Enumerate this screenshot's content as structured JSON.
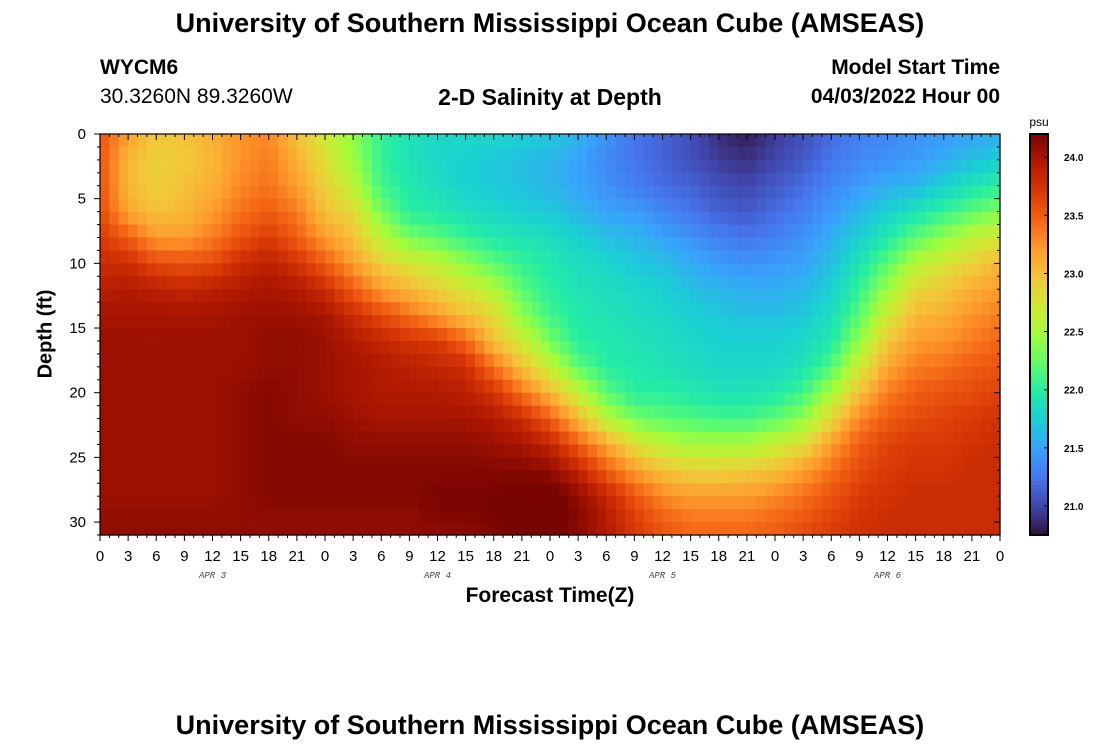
{
  "header": {
    "title": "University of Southern Mississippi Ocean Cube (AMSEAS)",
    "station": "WYCM6",
    "coords": "30.3260N  89.3260W",
    "subtitle": "2-D Salinity at Depth",
    "model_start_label": "Model Start Time",
    "model_start_value": "04/03/2022 Hour 00"
  },
  "footer": {
    "title": "University of Southern Mississippi Ocean Cube (AMSEAS)"
  },
  "chart_data": {
    "type": "heatmap",
    "title": "2-D Salinity at Depth",
    "xlabel": "Forecast Time(Z)",
    "ylabel": "Depth (ft)",
    "x_range_hours": [
      0,
      96
    ],
    "x_major_step_hours": 3,
    "x_tick_labels": [
      "0",
      "3",
      "6",
      "9",
      "12",
      "15",
      "18",
      "21",
      "0",
      "3",
      "6",
      "9",
      "12",
      "15",
      "18",
      "21",
      "0",
      "3",
      "6",
      "9",
      "12",
      "15",
      "18",
      "21",
      "0",
      "3",
      "6",
      "9",
      "12",
      "15",
      "18",
      "21",
      "0"
    ],
    "date_labels": [
      {
        "label": "APR 3",
        "hour": 12
      },
      {
        "label": "APR 4",
        "hour": 36
      },
      {
        "label": "APR 5",
        "hour": 60
      },
      {
        "label": "APR 6",
        "hour": 84
      }
    ],
    "ylim": [
      0,
      31
    ],
    "y_ticks": [
      0,
      5,
      10,
      15,
      20,
      25,
      30
    ],
    "colorbar": {
      "unit": "psu",
      "range": [
        20.75,
        24.2
      ],
      "ticks": [
        21.0,
        21.5,
        22.0,
        22.5,
        23.0,
        23.5,
        24.0
      ],
      "tick_labels": [
        "21.0",
        "21.5",
        "22.0",
        "22.5",
        "23.0",
        "23.5",
        "24.0"
      ],
      "colormap": [
        "#30123b",
        "#4145ab",
        "#4675ed",
        "#39a2fc",
        "#1bcfd4",
        "#24eca6",
        "#61fc6c",
        "#a4fc3b",
        "#d1e834",
        "#f3c63a",
        "#fe9b2d",
        "#f36315",
        "#d93806",
        "#b11901",
        "#7a0402"
      ]
    },
    "grid": false,
    "field_description": "Salinity (psu) over forecast hour x depth (ft); approximate values read from color.",
    "salinity_grid": {
      "hours": [
        0,
        3,
        6,
        9,
        12,
        15,
        18,
        21,
        24,
        27,
        30,
        33,
        36,
        39,
        42,
        45,
        48,
        51,
        54,
        57,
        60,
        63,
        66,
        69,
        72,
        75,
        78,
        81,
        84,
        87,
        90,
        93,
        96
      ],
      "depths": [
        0,
        2,
        4,
        6,
        8,
        10,
        12,
        14,
        16,
        18,
        20,
        22,
        24,
        26,
        28,
        30,
        31
      ],
      "values": [
        [
          23.55,
          23.55,
          23.55,
          23.6,
          23.7,
          23.8,
          23.9,
          24.0,
          24.05,
          24.05,
          24.05,
          24.05,
          24.05,
          24.05,
          24.05,
          24.1,
          24.1
        ],
        [
          23.2,
          23.05,
          23.05,
          23.15,
          23.5,
          23.8,
          23.95,
          24.0,
          24.05,
          24.05,
          24.05,
          24.05,
          24.05,
          24.05,
          24.05,
          24.1,
          24.1
        ],
        [
          22.95,
          22.9,
          22.9,
          23.0,
          23.2,
          23.6,
          23.9,
          24.0,
          24.05,
          24.05,
          24.05,
          24.05,
          24.05,
          24.05,
          24.05,
          24.1,
          24.1
        ],
        [
          23.0,
          22.95,
          23.0,
          23.05,
          23.2,
          23.55,
          23.85,
          24.0,
          24.05,
          24.05,
          24.05,
          24.05,
          24.05,
          24.05,
          24.05,
          24.1,
          24.1
        ],
        [
          23.1,
          23.05,
          23.1,
          23.2,
          23.35,
          23.6,
          23.9,
          24.0,
          24.05,
          24.05,
          24.05,
          24.05,
          24.05,
          24.05,
          24.05,
          24.1,
          24.1
        ],
        [
          23.25,
          23.25,
          23.3,
          23.4,
          23.55,
          23.8,
          23.95,
          24.05,
          24.05,
          24.05,
          24.1,
          24.1,
          24.1,
          24.1,
          24.1,
          24.1,
          24.1
        ],
        [
          23.3,
          23.35,
          23.4,
          23.5,
          23.7,
          23.9,
          24.0,
          24.05,
          24.1,
          24.1,
          24.15,
          24.15,
          24.15,
          24.15,
          24.15,
          24.1,
          24.1
        ],
        [
          23.0,
          23.1,
          23.2,
          23.35,
          23.5,
          23.75,
          23.95,
          24.05,
          24.1,
          24.1,
          24.1,
          24.1,
          24.15,
          24.15,
          24.15,
          24.1,
          24.1
        ],
        [
          22.7,
          22.8,
          22.9,
          23.0,
          23.2,
          23.5,
          23.8,
          24.0,
          24.05,
          24.05,
          24.05,
          24.1,
          24.15,
          24.15,
          24.15,
          24.1,
          24.1
        ],
        [
          22.4,
          22.45,
          22.6,
          22.85,
          23.0,
          23.2,
          23.5,
          23.8,
          23.95,
          24.0,
          24.0,
          24.05,
          24.1,
          24.15,
          24.15,
          24.1,
          24.1
        ],
        [
          22.05,
          22.05,
          22.1,
          22.3,
          22.6,
          22.9,
          23.2,
          23.6,
          23.85,
          23.95,
          23.95,
          24.0,
          24.1,
          24.15,
          24.15,
          24.1,
          24.1
        ],
        [
          21.9,
          21.9,
          21.95,
          22.0,
          22.3,
          22.75,
          23.05,
          23.4,
          23.75,
          23.9,
          23.95,
          24.0,
          24.1,
          24.15,
          24.15,
          24.1,
          24.1
        ],
        [
          21.8,
          21.8,
          21.85,
          21.95,
          22.2,
          22.6,
          22.9,
          23.2,
          23.7,
          23.85,
          23.95,
          24.0,
          24.1,
          24.15,
          24.2,
          24.15,
          24.1
        ],
        [
          21.8,
          21.75,
          21.75,
          21.85,
          22.05,
          22.4,
          22.75,
          23.0,
          23.45,
          23.8,
          23.9,
          24.0,
          24.1,
          24.15,
          24.2,
          24.15,
          24.1
        ],
        [
          21.8,
          21.7,
          21.7,
          21.8,
          21.95,
          22.2,
          22.55,
          22.85,
          23.0,
          23.4,
          23.75,
          23.95,
          24.05,
          24.15,
          24.2,
          24.2,
          24.15
        ],
        [
          21.75,
          21.65,
          21.65,
          21.75,
          21.9,
          22.05,
          22.2,
          22.4,
          22.7,
          23.0,
          23.4,
          23.8,
          24.0,
          24.15,
          24.25,
          24.25,
          24.2
        ],
        [
          21.7,
          21.6,
          21.6,
          21.7,
          21.85,
          21.95,
          22.0,
          22.1,
          22.3,
          22.65,
          23.05,
          23.5,
          23.85,
          24.1,
          24.3,
          24.3,
          24.25
        ],
        [
          21.6,
          21.5,
          21.5,
          21.6,
          21.75,
          21.85,
          21.9,
          21.95,
          22.0,
          22.2,
          22.65,
          23.05,
          23.5,
          23.85,
          24.1,
          24.15,
          24.1
        ],
        [
          21.4,
          21.35,
          21.4,
          21.5,
          21.65,
          21.8,
          21.85,
          21.9,
          21.95,
          22.0,
          22.2,
          22.6,
          23.15,
          23.5,
          23.85,
          23.95,
          23.95
        ],
        [
          21.25,
          21.25,
          21.3,
          21.45,
          21.6,
          21.7,
          21.8,
          21.85,
          21.9,
          21.95,
          22.0,
          22.3,
          22.8,
          23.2,
          23.55,
          23.7,
          23.7
        ],
        [
          21.15,
          21.15,
          21.2,
          21.35,
          21.5,
          21.65,
          21.75,
          21.8,
          21.85,
          21.9,
          22.0,
          22.2,
          22.6,
          23.0,
          23.3,
          23.5,
          23.55
        ],
        [
          21.05,
          21.05,
          21.15,
          21.25,
          21.4,
          21.55,
          21.65,
          21.75,
          21.8,
          21.85,
          21.95,
          22.15,
          22.5,
          22.9,
          23.2,
          23.4,
          23.45
        ],
        [
          20.9,
          20.95,
          21.05,
          21.15,
          21.3,
          21.45,
          21.6,
          21.7,
          21.75,
          21.8,
          21.9,
          22.1,
          22.5,
          22.9,
          23.2,
          23.4,
          23.45
        ],
        [
          20.8,
          20.9,
          21.0,
          21.1,
          21.25,
          21.4,
          21.55,
          21.65,
          21.75,
          21.8,
          21.9,
          22.1,
          22.5,
          22.95,
          23.2,
          23.4,
          23.45
        ],
        [
          20.95,
          21.0,
          21.1,
          21.2,
          21.3,
          21.45,
          21.55,
          21.65,
          21.75,
          21.8,
          21.95,
          22.2,
          22.65,
          23.0,
          23.3,
          23.45,
          23.5
        ],
        [
          21.05,
          21.1,
          21.2,
          21.3,
          21.4,
          21.5,
          21.6,
          21.7,
          21.8,
          21.9,
          22.1,
          22.4,
          22.8,
          23.2,
          23.4,
          23.55,
          23.6
        ],
        [
          21.2,
          21.25,
          21.35,
          21.45,
          21.55,
          21.65,
          21.75,
          21.85,
          21.95,
          22.15,
          22.5,
          22.85,
          23.2,
          23.4,
          23.55,
          23.65,
          23.7
        ],
        [
          21.3,
          21.35,
          21.45,
          21.6,
          21.75,
          21.9,
          22.05,
          22.2,
          22.4,
          22.7,
          23.0,
          23.3,
          23.5,
          23.6,
          23.7,
          23.75,
          23.75
        ],
        [
          21.35,
          21.4,
          21.55,
          21.75,
          21.95,
          22.2,
          22.45,
          22.7,
          22.95,
          23.15,
          23.35,
          23.5,
          23.65,
          23.7,
          23.75,
          23.8,
          23.8
        ],
        [
          21.4,
          21.45,
          21.6,
          21.9,
          22.2,
          22.55,
          22.85,
          23.05,
          23.2,
          23.35,
          23.5,
          23.6,
          23.7,
          23.75,
          23.8,
          23.8,
          23.8
        ],
        [
          21.45,
          21.55,
          21.75,
          22.05,
          22.4,
          22.75,
          22.95,
          23.1,
          23.25,
          23.4,
          23.55,
          23.65,
          23.7,
          23.75,
          23.8,
          23.8,
          23.8
        ],
        [
          21.5,
          21.65,
          21.9,
          22.2,
          22.6,
          22.9,
          23.1,
          23.25,
          23.35,
          23.5,
          23.6,
          23.7,
          23.75,
          23.8,
          23.8,
          23.8,
          23.8
        ],
        [
          21.55,
          21.75,
          22.0,
          22.35,
          22.75,
          23.05,
          23.2,
          23.35,
          23.45,
          23.55,
          23.65,
          23.75,
          23.8,
          23.8,
          23.8,
          23.8,
          23.8
        ]
      ]
    }
  }
}
